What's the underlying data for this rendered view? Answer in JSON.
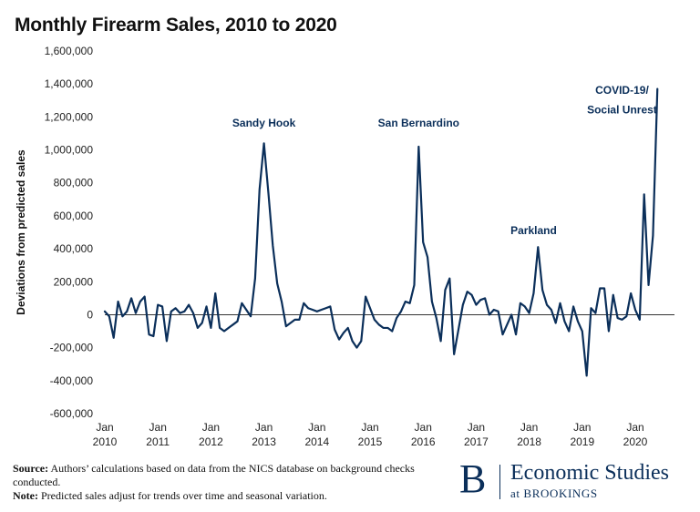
{
  "title": "Monthly Firearm Sales, 2010 to 2020",
  "chart_data": {
    "type": "line",
    "title": "Monthly Firearm Sales, 2010 to 2020",
    "ylabel": "Deviations from predicted sales",
    "xlabel": "",
    "ylim": [
      -600000,
      1600000
    ],
    "y_ticks": [
      "-600,000",
      "-400,000",
      "-200,000",
      "0",
      "200,000",
      "400,000",
      "600,000",
      "800,000",
      "1,000,000",
      "1,200,000",
      "1,400,000",
      "1,600,000"
    ],
    "x_ticks": [
      {
        "month": "Jan",
        "year": "2010"
      },
      {
        "month": "Jan",
        "year": "2011"
      },
      {
        "month": "Jan",
        "year": "2012"
      },
      {
        "month": "Jan",
        "year": "2013"
      },
      {
        "month": "Jan",
        "year": "2014"
      },
      {
        "month": "Jan",
        "year": "2015"
      },
      {
        "month": "Jan",
        "year": "2016"
      },
      {
        "month": "Jan",
        "year": "2017"
      },
      {
        "month": "Jan",
        "year": "2018"
      },
      {
        "month": "Jan",
        "year": "2019"
      },
      {
        "month": "Jan",
        "year": "2020"
      }
    ],
    "x_start": "2010-01",
    "grid": false,
    "line_color": "#0b2f5a",
    "series": [
      {
        "values": [
          20000,
          -10000,
          -140000,
          80000,
          -10000,
          20000,
          100000,
          10000,
          80000,
          110000,
          -120000,
          -130000,
          60000,
          50000,
          -160000,
          20000,
          40000,
          10000,
          20000,
          60000,
          10000,
          -80000,
          -50000,
          50000,
          -80000,
          130000,
          -80000,
          -100000,
          -80000,
          -60000,
          -40000,
          70000,
          30000,
          -10000,
          220000,
          760000,
          1040000,
          740000,
          420000,
          190000,
          80000,
          -70000,
          -50000,
          -30000,
          -30000,
          70000,
          40000,
          30000,
          20000,
          30000,
          40000,
          50000,
          -90000,
          -150000,
          -110000,
          -80000,
          -160000,
          -200000,
          -160000,
          110000,
          40000,
          -30000,
          -60000,
          -80000,
          -80000,
          -100000,
          -20000,
          20000,
          80000,
          70000,
          180000,
          1020000,
          440000,
          350000,
          80000,
          -20000,
          -160000,
          150000,
          220000,
          -240000,
          -90000,
          60000,
          140000,
          120000,
          60000,
          90000,
          100000,
          0,
          30000,
          20000,
          -120000,
          -60000,
          0,
          -120000,
          70000,
          50000,
          10000,
          130000,
          410000,
          150000,
          60000,
          30000,
          -50000,
          70000,
          -40000,
          -100000,
          50000,
          -40000,
          -100000,
          -370000,
          40000,
          10000,
          160000,
          160000,
          -100000,
          120000,
          -20000,
          -30000,
          -10000,
          130000,
          30000,
          -30000,
          730000,
          180000,
          480000,
          1370000
        ]
      }
    ],
    "annotations": [
      {
        "text": "Sandy Hook",
        "month": "2013-01",
        "value": 1140000
      },
      {
        "text": "San Bernardino",
        "month": "2015-12",
        "value": 1140000
      },
      {
        "text": "Parkland",
        "month": "2018-02",
        "value": 490000
      },
      {
        "text": "COVID-19/",
        "month": "2019-10",
        "value": 1340000
      },
      {
        "text": "Social Unrest",
        "month": "2019-10",
        "value": 1220000
      }
    ]
  },
  "footer": {
    "source_label": "Source:",
    "source_text": "Authors’ calculations based on data from the NICS database on background checks conducted.",
    "note_label": "Note:",
    "note_text": "Predicted sales adjust for trends over time and seasonal variation."
  },
  "brand": {
    "initial": "B",
    "name": "Economic Studies",
    "sub": "at BROOKINGS",
    "color": "#0b2f5a"
  }
}
